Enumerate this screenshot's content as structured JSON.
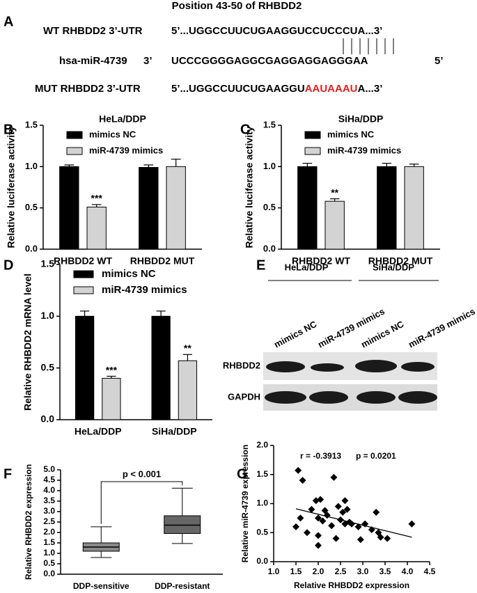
{
  "sequence_panel": {
    "panel_label": "A",
    "title": "Position 43-50 of RHBDD2",
    "rows": [
      {
        "label": "WT RHBDD2 3’-UTR",
        "sequence": "5’...UGGCCUUCUGAAGGUCCUCCCUA...3’"
      },
      {
        "label": "hsa-miR-4739",
        "end_left": "3’",
        "sequence": "UCCCGGGGAGGCGAGGAGGAGGGAA",
        "end_right": "5’"
      },
      {
        "label": "MUT RHBDD2 3’-UTR",
        "sequence_parts": [
          "5’...UGGCCUUCUGAAGGU",
          "AAUAAAU",
          "A...3’"
        ]
      }
    ]
  },
  "blot_panel": {
    "panel_label": "E",
    "groups": [
      "HeLa/DDP",
      "SiHa/DDP"
    ],
    "lanes": [
      "mimics NC",
      "miR-4739 mimics",
      "mimics NC",
      "miR-4739 mimics"
    ],
    "rows": [
      "RHBDD2",
      "GAPDH"
    ]
  },
  "chart_data": [
    {
      "type": "bar",
      "panel_label": "B",
      "title": "HeLa/DDP",
      "y_label": "Relative luciferase activity",
      "categories": [
        "RHBDD2 WT",
        "RHBDD2 MUT"
      ],
      "series": [
        {
          "name": "mimics NC",
          "color": "#000000",
          "values": [
            1.0,
            0.99
          ],
          "errors": [
            0.02,
            0.03
          ]
        },
        {
          "name": "miR-4739 mimics",
          "color": "#d3d3d3",
          "values": [
            0.51,
            1.0
          ],
          "errors": [
            0.03,
            0.09
          ],
          "value_labels": [
            "***",
            null
          ]
        }
      ],
      "ylim": [
        0,
        1.5
      ],
      "yticks": [
        {
          "value": 0,
          "label": "0.0"
        },
        0.5,
        {
          "value": 1,
          "label": "1.0"
        },
        1.5
      ]
    },
    {
      "type": "bar",
      "panel_label": "C",
      "title": "SiHa/DDP",
      "y_label": "Relative luciferase activity",
      "categories": [
        "RHBDD2 WT",
        "RHBDD2 MUT"
      ],
      "series": [
        {
          "name": "mimics NC",
          "color": "#000000",
          "values": [
            1.0,
            1.0
          ],
          "errors": [
            0.04,
            0.04
          ]
        },
        {
          "name": "miR-4739 mimics",
          "color": "#d3d3d3",
          "values": [
            0.58,
            1.0
          ],
          "errors": [
            0.03,
            0.03
          ],
          "value_labels": [
            "**",
            null
          ]
        }
      ],
      "ylim": [
        0,
        1.5
      ],
      "yticks": [
        {
          "value": 0,
          "label": "0.0"
        },
        0.5,
        {
          "value": 1,
          "label": "1.0"
        },
        1.5
      ]
    },
    {
      "type": "bar",
      "panel_label": "D",
      "y_label": "Relative RHBDD2 mRNA level",
      "categories": [
        "HeLa/DDP",
        "SiHa/DDP"
      ],
      "series": [
        {
          "name": "mimics NC",
          "color": "#000000",
          "values": [
            1.0,
            1.0
          ],
          "errors": [
            0.05,
            0.05
          ]
        },
        {
          "name": "miR-4739 mimics",
          "color": "#d3d3d3",
          "values": [
            0.4,
            0.57
          ],
          "errors": [
            0.02,
            0.06
          ],
          "value_labels": [
            "***",
            "**"
          ]
        }
      ],
      "ylim": [
        0,
        1.5
      ],
      "yticks": [
        {
          "value": 0,
          "label": "0.0"
        },
        0.5,
        {
          "value": 1,
          "label": "1.0"
        },
        1.5
      ]
    },
    {
      "type": "box",
      "panel_label": "F",
      "y_label": "Relative RHBDD2 expression",
      "annotation": "p < 0.001",
      "categories": [
        "DDP-sensitive",
        "DDP-resistant"
      ],
      "colors": [
        "#8a8a8a",
        "#666666"
      ],
      "min": [
        0.8,
        1.47
      ],
      "q1": [
        1.1,
        1.95
      ],
      "median": [
        1.3,
        2.35
      ],
      "q3": [
        1.5,
        2.8
      ],
      "max": [
        2.27,
        4.12
      ],
      "ylim": [
        0,
        5
      ],
      "yticks": [
        {
          "value": 0,
          "label": "0.0"
        },
        0.5,
        {
          "value": 1,
          "label": "1.0"
        },
        1.5,
        {
          "value": 2,
          "label": "2.0"
        },
        2.5,
        {
          "value": 3,
          "label": "3.0"
        },
        3.5,
        {
          "value": 4,
          "label": "4.0"
        },
        4.5,
        {
          "value": 5,
          "label": "5.0"
        }
      ]
    },
    {
      "type": "scatter",
      "panel_label": "G",
      "x_label": "Relative RHBDD2 expression",
      "y_label": "Relative miR-4739 expression",
      "annotations": [
        "r = -0.3913",
        "p = 0.0201"
      ],
      "color": "#000000",
      "x": [
        1.55,
        1.5,
        1.6,
        1.65,
        1.75,
        1.85,
        1.95,
        2.0,
        2.0,
        2.05,
        2.0,
        2.1,
        2.15,
        2.2,
        2.3,
        2.35,
        2.4,
        2.45,
        2.5,
        2.55,
        2.6,
        2.6,
        2.65,
        2.7,
        2.75,
        2.9,
        2.95,
        3.05,
        3.2,
        3.3,
        3.35,
        3.4,
        3.55,
        4.1
      ],
      "y": [
        1.57,
        0.6,
        0.75,
        1.4,
        0.5,
        0.9,
        1.05,
        0.75,
        0.45,
        1.07,
        0.28,
        0.7,
        0.88,
        0.8,
        0.62,
        1.45,
        0.4,
        0.95,
        0.72,
        0.85,
        1.05,
        0.65,
        0.9,
        0.68,
        0.65,
        0.6,
        0.38,
        0.65,
        0.55,
        0.85,
        0.5,
        0.42,
        0.4,
        0.65
      ],
      "fit_line": {
        "x": [
          1.5,
          4.1
        ],
        "y": [
          0.91,
          0.42
        ]
      },
      "xlim": [
        1,
        4.5
      ],
      "ylim": [
        0,
        2
      ],
      "xticks": [
        {
          "value": 1,
          "label": "1.0"
        },
        1.5,
        {
          "value": 2,
          "label": "2.0"
        },
        2.5,
        {
          "value": 3,
          "label": "3.0"
        },
        3.5,
        {
          "value": 4,
          "label": "4.0"
        },
        4.5
      ],
      "yticks": [
        {
          "value": 0,
          "label": "0.0"
        },
        0.5,
        {
          "value": 1,
          "label": "1.0"
        },
        1.5,
        {
          "value": 2,
          "label": "2.0"
        }
      ]
    }
  ]
}
